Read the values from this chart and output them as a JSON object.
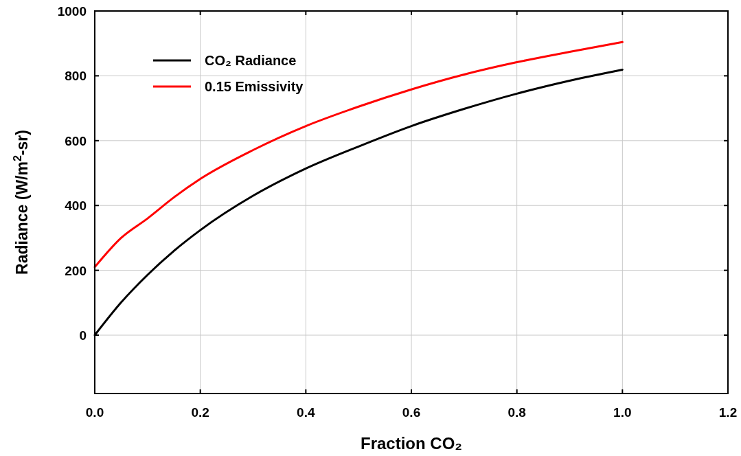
{
  "chart_data": {
    "type": "line",
    "xlabel": "Fraction CO₂",
    "ylabel": "Radiance (W/m$^{2}$-sr)",
    "x": [
      0,
      0.05,
      0.1,
      0.15,
      0.2,
      0.3,
      0.4,
      0.5,
      0.6,
      0.7,
      0.8,
      0.9,
      1.0
    ],
    "series": [
      {
        "name": "CO₂ Radiance",
        "color": "#000000",
        "values": [
          0,
          101,
          186,
          260,
          324,
          430,
          514,
          582,
          645,
          698,
          745,
          785,
          819
        ]
      },
      {
        "name": "0.15 Emissivity",
        "color": "#ff0000",
        "values": [
          210,
          300,
          360,
          425,
          482,
          571,
          645,
          705,
          758,
          804,
          842,
          874,
          904
        ]
      }
    ],
    "xlim": [
      0,
      1.2
    ],
    "xticks": [
      {
        "value": 0,
        "label": "0.0"
      },
      0.2,
      0.4,
      0.6,
      0.8,
      {
        "value": 1,
        "label": "1.0"
      },
      1.2
    ],
    "ylim": [
      -180,
      1000
    ],
    "yticks": [
      0,
      200,
      400,
      600,
      800,
      1000
    ],
    "grid": true,
    "legend": "top left",
    "line_style": "solid"
  }
}
